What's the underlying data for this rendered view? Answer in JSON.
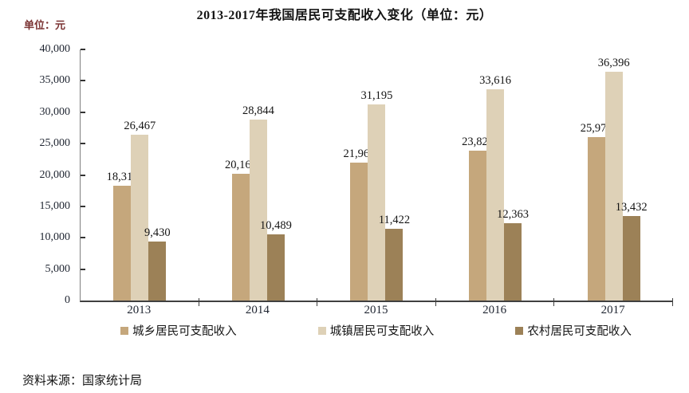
{
  "chart_data": {
    "type": "bar",
    "title": "2013-2017年我国居民可支配收入变化（单位：元）",
    "unit_label": "单位：元",
    "categories": [
      "2013",
      "2014",
      "2015",
      "2016",
      "2017"
    ],
    "series": [
      {
        "name": "城乡居民可支配收入",
        "color": "#C5A77C",
        "values": [
          18311,
          20167,
          21966,
          23821,
          25974
        ],
        "labels": [
          "18,311",
          "20,167",
          "21,966",
          "23,821",
          "25,974"
        ]
      },
      {
        "name": "城镇居民可支配收入",
        "color": "#DED1B7",
        "values": [
          26467,
          28844,
          31195,
          33616,
          36396
        ],
        "labels": [
          "26,467",
          "28,844",
          "31,195",
          "33,616",
          "36,396"
        ]
      },
      {
        "name": "农村居民可支配收入",
        "color": "#9C8157",
        "values": [
          9430,
          10489,
          11422,
          12363,
          13432
        ],
        "labels": [
          "9,430",
          "10,489",
          "11,422",
          "12,363",
          "13,432"
        ]
      }
    ],
    "ylim": [
      0,
      40000
    ],
    "y_tick_step": 5000,
    "y_tick_labels": [
      "0",
      "5,000",
      "10,000",
      "15,000",
      "20,000",
      "25,000",
      "30,000",
      "35,000",
      "40,000"
    ],
    "grid": false,
    "legend_position": "bottom",
    "source_note": "资料来源：国家统计局"
  },
  "colors": {
    "unit_label_text": "#7A3232",
    "axis_text": "#1E2430",
    "data_label_text": "#141414",
    "y_axis_line": "#7F7F7F",
    "x_axis_line": "#404040",
    "tick": "#333333",
    "background": "#FFFFFF"
  }
}
